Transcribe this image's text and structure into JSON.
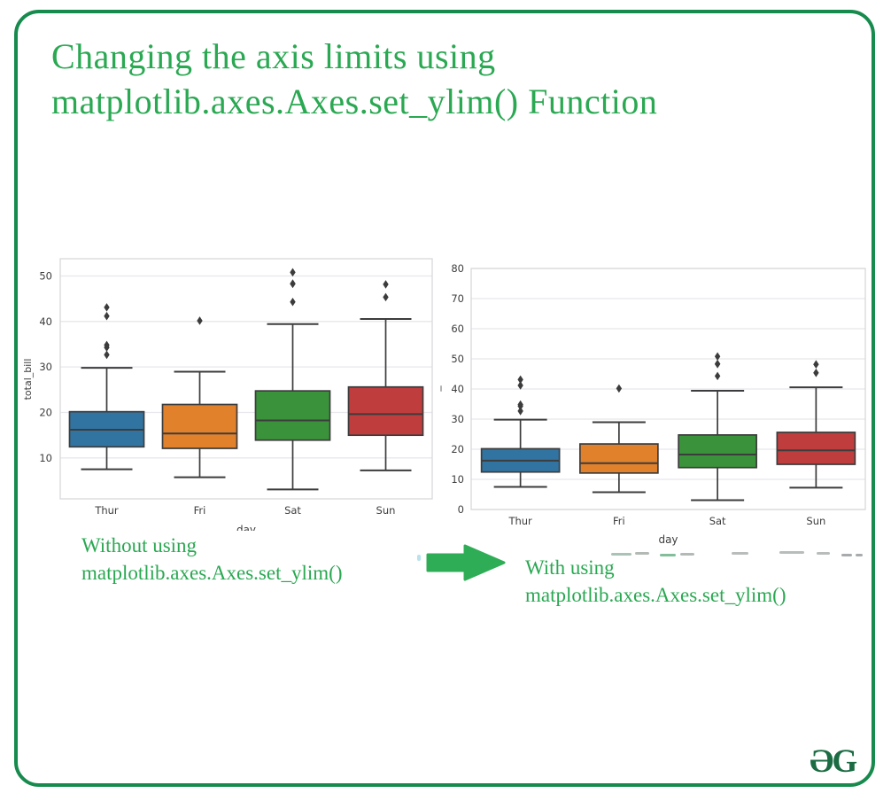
{
  "page": {
    "border_color": "#178a4d",
    "accent_green": "#2aa852",
    "arrow_green": "#2fad56",
    "logo_green": "#1b6b43",
    "title": {
      "line1": "Changing the axis limits using",
      "line2": "matplotlib.axes.Axes.set_ylim() Function"
    },
    "caption_left": {
      "line1": "Without using",
      "line2": "matplotlib.axes.Axes.set_ylim()"
    },
    "caption_right": {
      "line1": "With using",
      "line2": "matplotlib.axes.Axes.set_ylim()"
    },
    "logo_text": "ƏG"
  },
  "chart_data": [
    {
      "type": "boxplot",
      "title": "",
      "xlabel": "day",
      "ylabel": "total_bill",
      "categories": [
        "Thur",
        "Fri",
        "Sat",
        "Sun"
      ],
      "palette": [
        "#3274a1",
        "#e1812c",
        "#3a923a",
        "#c03d3e"
      ],
      "ylim": [
        1.0,
        53.8
      ],
      "yticks": [
        10,
        20,
        30,
        40,
        50
      ],
      "grid": true,
      "series": [
        {
          "name": "Thur",
          "whislo": 7.51,
          "q1": 12.44,
          "med": 16.2,
          "q3": 20.16,
          "whishi": 29.8,
          "fliers": [
            32.68,
            34.3,
            34.83,
            41.19,
            43.11
          ]
        },
        {
          "name": "Fri",
          "whislo": 5.75,
          "q1": 12.1,
          "med": 15.38,
          "q3": 21.75,
          "whishi": 28.97,
          "fliers": [
            40.17
          ]
        },
        {
          "name": "Sat",
          "whislo": 3.07,
          "q1": 13.91,
          "med": 18.24,
          "q3": 24.74,
          "whishi": 39.42,
          "fliers": [
            44.3,
            48.27,
            48.33,
            50.81
          ]
        },
        {
          "name": "Sun",
          "whislo": 7.25,
          "q1": 14.99,
          "med": 19.63,
          "q3": 25.6,
          "whishi": 40.55,
          "fliers": [
            45.35,
            48.17
          ]
        }
      ]
    },
    {
      "type": "boxplot",
      "title": "",
      "xlabel": "day",
      "ylabel": "",
      "categories": [
        "Thur",
        "Fri",
        "Sat",
        "Sun"
      ],
      "palette": [
        "#3274a1",
        "#e1812c",
        "#3a923a",
        "#c03d3e"
      ],
      "ylim": [
        0,
        80
      ],
      "yticks": [
        0,
        10,
        20,
        30,
        40,
        50,
        60,
        70,
        80
      ],
      "grid": true,
      "series": [
        {
          "name": "Thur",
          "whislo": 7.51,
          "q1": 12.44,
          "med": 16.2,
          "q3": 20.16,
          "whishi": 29.8,
          "fliers": [
            32.68,
            34.3,
            34.83,
            41.19,
            43.11
          ]
        },
        {
          "name": "Fri",
          "whislo": 5.75,
          "q1": 12.1,
          "med": 15.38,
          "q3": 21.75,
          "whishi": 28.97,
          "fliers": [
            40.17
          ]
        },
        {
          "name": "Sat",
          "whislo": 3.07,
          "q1": 13.91,
          "med": 18.24,
          "q3": 24.74,
          "whishi": 39.42,
          "fliers": [
            44.3,
            48.27,
            48.33,
            50.81
          ]
        },
        {
          "name": "Sun",
          "whislo": 7.25,
          "q1": 14.99,
          "med": 19.63,
          "q3": 25.6,
          "whishi": 40.55,
          "fliers": [
            45.35,
            48.17
          ]
        }
      ]
    }
  ]
}
